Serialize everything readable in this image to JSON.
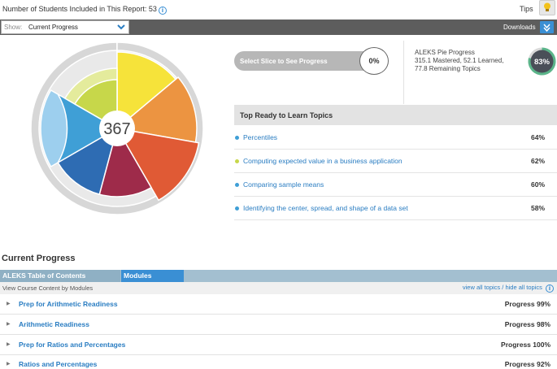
{
  "header": {
    "report_count": "Number of Students Included in This Report: 53",
    "tips_label": "Tips"
  },
  "toolbar": {
    "show_label": "Show:",
    "show_value": "Current Progress",
    "downloads_label": "Downloads"
  },
  "pie": {
    "center_value": "367",
    "colors": {
      "yellow": "#f6e33a",
      "orange": "#ec9441",
      "red_orange": "#e05a35",
      "crimson": "#9e2b4a",
      "dark_blue": "#2e6cb3",
      "blue": "#3f9fd6",
      "olive": "#c7d74a",
      "pale_olive": "#e4eb9c",
      "light_gray": "#d7d7d7"
    }
  },
  "slice_progress": {
    "label": "Select Slice to See Progress",
    "percent": "0%"
  },
  "aleks_progress": {
    "title": "ALEKS Pie Progress",
    "line1": "315.1 Mastered, 52.1 Learned,",
    "line2": "77.8 Remaining Topics",
    "percent": "83%"
  },
  "ready_to_learn": {
    "title": "Top Ready to Learn Topics",
    "items": [
      {
        "name": "Percentiles",
        "percent": "64%",
        "color": "#3f9fd6"
      },
      {
        "name": "Computing expected value in a business application",
        "percent": "62%",
        "color": "#c7d74a"
      },
      {
        "name": "Comparing sample means",
        "percent": "60%",
        "color": "#3f9fd6"
      },
      {
        "name": "Identifying the center, spread, and shape of a data set",
        "percent": "58%",
        "color": "#3f9fd6"
      }
    ]
  },
  "current_progress": {
    "title": "Current Progress",
    "tabs": [
      "ALEKS Table of Contents",
      "Modules"
    ],
    "subheader_left": "View Course Content by Modules",
    "view_all": "view all topics",
    "separator": "/",
    "hide_all": "hide all topics",
    "modules": [
      {
        "name": "Prep for Arithmetic Readiness",
        "progress": "Progress 99%"
      },
      {
        "name": "Arithmetic Readiness",
        "progress": "Progress 98%"
      },
      {
        "name": "Prep for Ratios and Percentages",
        "progress": "Progress 100%"
      },
      {
        "name": "Ratios and Percentages",
        "progress": "Progress 92%"
      }
    ]
  }
}
